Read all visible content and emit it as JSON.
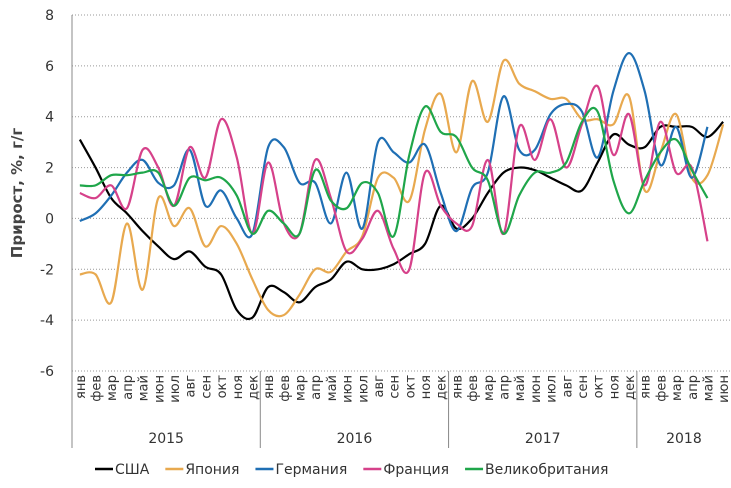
{
  "chart_data": {
    "type": "line",
    "y_label": "Прирост, %, г/г",
    "categories": [
      "янв",
      "фев",
      "мар",
      "апр",
      "май",
      "июн",
      "июл",
      "авг",
      "сен",
      "окт",
      "ноя",
      "дек",
      "янв",
      "фев",
      "мар",
      "апр",
      "май",
      "июн",
      "июл",
      "авг",
      "сен",
      "окт",
      "ноя",
      "дек",
      "янв",
      "фев",
      "мар",
      "апр",
      "май",
      "июн",
      "июл",
      "авг",
      "сен",
      "окт",
      "ноя",
      "дек",
      "янв",
      "фев",
      "мар",
      "апр",
      "май",
      "июн"
    ],
    "x_groups": [
      "2015",
      "2016",
      "2017",
      "2018"
    ],
    "ylim": [
      -6,
      8
    ],
    "yticks": [
      -6,
      -4,
      -2,
      0,
      2,
      4,
      6,
      8
    ],
    "grid": true,
    "legend": "bottom",
    "series": [
      {
        "name": "США",
        "color": "#000000",
        "values": [
          3.1,
          2.0,
          0.8,
          0.2,
          -0.5,
          -1.1,
          -1.6,
          -1.3,
          -1.9,
          -2.2,
          -3.6,
          -3.9,
          -2.7,
          -2.9,
          -3.3,
          -2.7,
          -2.4,
          -1.7,
          -2.0,
          -2.0,
          -1.8,
          -1.4,
          -1.0,
          0.5,
          -0.4,
          0.0,
          1.0,
          1.8,
          2.0,
          1.9,
          1.6,
          1.3,
          1.1,
          2.2,
          3.3,
          2.9,
          2.8,
          3.6,
          3.6,
          3.6,
          3.2,
          3.8
        ]
      },
      {
        "name": "Япония",
        "color": "#e8a94f",
        "values": [
          -2.2,
          -2.2,
          -3.3,
          -0.2,
          -2.8,
          0.8,
          -0.3,
          0.4,
          -1.1,
          -0.3,
          -1.0,
          -2.4,
          -3.6,
          -3.8,
          -3.0,
          -2.0,
          -2.1,
          -1.3,
          -0.7,
          1.6,
          1.6,
          0.7,
          3.5,
          4.9,
          2.6,
          5.4,
          3.8,
          6.2,
          5.3,
          5.0,
          4.7,
          4.7,
          3.9,
          3.9,
          3.7,
          4.8,
          1.1,
          2.6,
          4.1,
          1.6,
          1.7,
          3.7
        ]
      },
      {
        "name": "Германия",
        "color": "#1f6fb4",
        "values": [
          -0.1,
          0.2,
          0.9,
          1.8,
          2.3,
          1.4,
          1.3,
          2.7,
          0.5,
          1.1,
          0.0,
          -0.6,
          2.8,
          2.8,
          1.4,
          1.4,
          -0.2,
          1.8,
          -0.4,
          3.0,
          2.6,
          2.2,
          2.9,
          1.0,
          -0.5,
          1.2,
          1.8,
          4.8,
          2.7,
          2.7,
          4.1,
          4.5,
          4.2,
          2.4,
          5.0,
          6.5,
          5.0,
          2.1,
          3.6,
          1.6,
          3.6,
          null
        ]
      },
      {
        "name": "Франция",
        "color": "#d6418a",
        "values": [
          1.0,
          0.8,
          1.3,
          0.4,
          2.7,
          2.0,
          0.5,
          2.8,
          1.6,
          3.9,
          2.4,
          -0.6,
          2.2,
          -0.2,
          -0.6,
          2.3,
          0.8,
          -1.3,
          -0.8,
          0.3,
          -1.2,
          -2.0,
          1.8,
          0.5,
          -0.2,
          -0.3,
          2.3,
          -0.6,
          3.6,
          2.3,
          3.9,
          2.0,
          3.7,
          5.2,
          2.5,
          4.1,
          1.3,
          3.8,
          1.8,
          2.0,
          -0.9,
          null
        ]
      },
      {
        "name": "Великобритания",
        "color": "#1fa64a",
        "values": [
          1.3,
          1.3,
          1.7,
          1.7,
          1.8,
          1.8,
          0.5,
          1.6,
          1.5,
          1.6,
          0.9,
          -0.6,
          0.3,
          -0.2,
          -0.6,
          1.9,
          0.7,
          0.4,
          1.4,
          1.0,
          -0.7,
          2.5,
          4.4,
          3.4,
          3.2,
          2.0,
          1.5,
          -0.6,
          0.9,
          1.8,
          1.8,
          2.2,
          3.8,
          4.2,
          1.5,
          0.2,
          1.5,
          2.6,
          3.1,
          1.9,
          0.8,
          null
        ]
      }
    ]
  }
}
